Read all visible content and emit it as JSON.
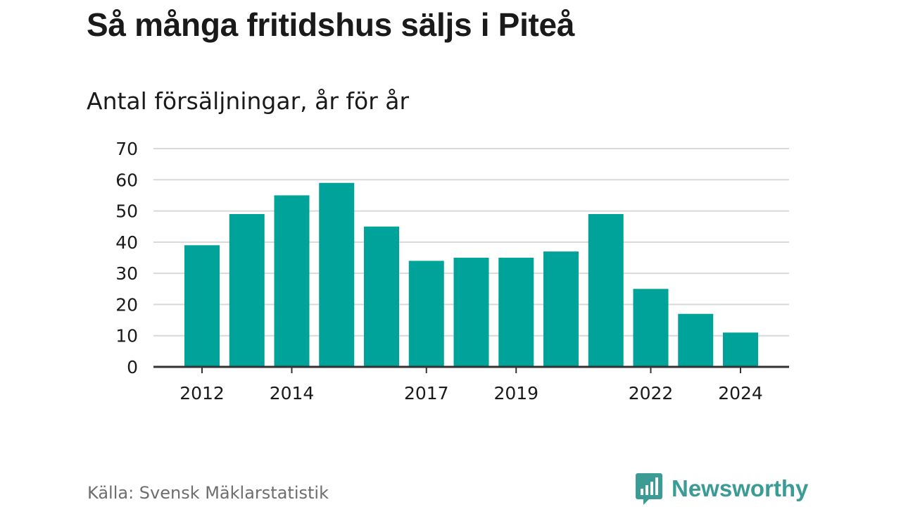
{
  "chart_data": {
    "type": "bar",
    "title": "Så många fritidshus säljs i Piteå",
    "subtitle": "Antal försäljningar, år för år",
    "categories": [
      "2012",
      "2013",
      "2014",
      "2015",
      "2016",
      "2017",
      "2018",
      "2019",
      "2020",
      "2021",
      "2022",
      "2023",
      "2024"
    ],
    "values": [
      39,
      49,
      55,
      59,
      45,
      34,
      35,
      35,
      37,
      49,
      25,
      17,
      11
    ],
    "x_tick_labels": [
      "2012",
      "2014",
      "2017",
      "2019",
      "2022",
      "2024"
    ],
    "y_ticks": [
      0,
      10,
      20,
      30,
      40,
      50,
      60,
      70
    ],
    "ylim": [
      0,
      70
    ],
    "grid": true,
    "bar_color": "#00a39a",
    "xlabel": "",
    "ylabel": ""
  },
  "footer": {
    "source": "Källa: Svensk Mäklarstatistik",
    "brand": "Newsworthy",
    "brand_color": "#3a9c95",
    "brand_icon": "bar-chart-speech-bubble-icon"
  }
}
